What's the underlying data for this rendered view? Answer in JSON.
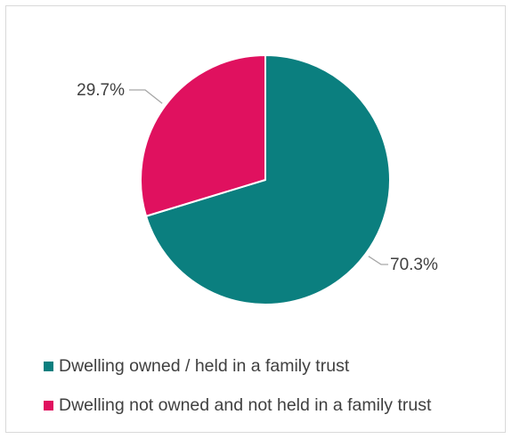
{
  "chart_data": {
    "type": "pie",
    "title": "",
    "slices": [
      {
        "name": "Dwelling owned / held in a family trust",
        "value": 70.3,
        "label": "70.3%",
        "color": "#0b7f7f"
      },
      {
        "name": "Dwelling not owned and not held in a family trust",
        "value": 29.7,
        "label": "29.7%",
        "color": "#e0115f"
      }
    ],
    "start_angle_deg": 0,
    "direction": "clockwise",
    "legend": {
      "position": "bottom"
    },
    "slice_border_color": "#ffffff"
  }
}
